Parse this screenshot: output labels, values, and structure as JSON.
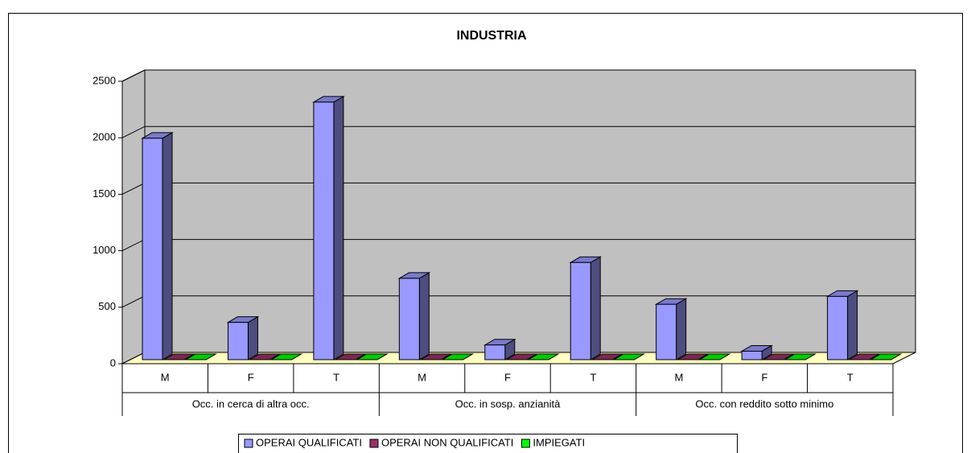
{
  "chart_data": {
    "type": "bar3d",
    "title": "INDUSTRIA",
    "categories": [
      "M",
      "F",
      "T",
      "M",
      "F",
      "T",
      "M",
      "F",
      "T"
    ],
    "groups": [
      "Occ. in cerca di altra occ.",
      "Occ. in sosp. anzianità",
      "Occ. con reddito sotto minimo"
    ],
    "series": [
      {
        "name": "OPERAI QUALIFICATI",
        "color": "#9999ff",
        "values": [
          1960,
          330,
          2280,
          720,
          130,
          860,
          490,
          75,
          560
        ]
      },
      {
        "name": "OPERAI NON QUALIFICATI",
        "color": "#993366",
        "values": [
          0,
          0,
          0,
          0,
          0,
          0,
          0,
          0,
          0
        ]
      },
      {
        "name": "IMPIEGATI",
        "color": "#00ff00",
        "values": [
          0,
          0,
          0,
          0,
          0,
          0,
          0,
          0,
          0
        ]
      }
    ],
    "ylim": [
      0,
      2500
    ],
    "yticks": [
      0,
      500,
      1000,
      1500,
      2000,
      2500
    ],
    "grid": true,
    "legend": "bottom"
  }
}
